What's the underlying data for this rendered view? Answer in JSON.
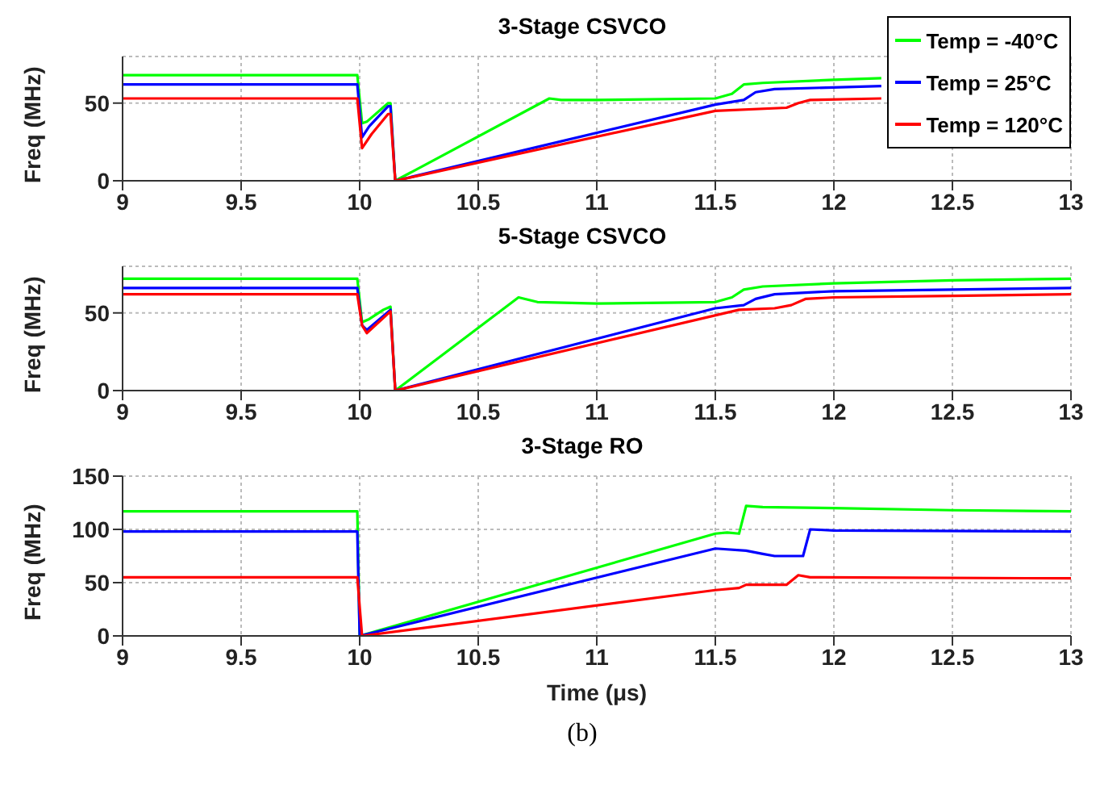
{
  "chart_data": [
    {
      "type": "line",
      "title": "3-Stage CSVCO",
      "ylabel": "Freq (MHz)",
      "xlim": [
        9,
        13
      ],
      "xticks": [
        9,
        9.5,
        10,
        10.5,
        11,
        11.5,
        12,
        12.5,
        13
      ],
      "ylim": [
        0,
        80
      ],
      "yticks": [
        0,
        50
      ],
      "grid": true,
      "legend": "top right",
      "line_style": "solid",
      "marker": "none",
      "series": [
        {
          "name": "Temp = -40°C",
          "color": "#00ff00",
          "x": [
            9,
            9.99,
            10.01,
            10.03,
            10.12,
            10.13,
            10.15,
            10.8,
            10.85,
            11.0,
            11.5,
            11.57,
            11.62,
            11.7,
            12,
            12.2
          ],
          "values": [
            68,
            68,
            37,
            38,
            50,
            50,
            0,
            53,
            52,
            52,
            53,
            56,
            62,
            63,
            65,
            66
          ]
        },
        {
          "name": "Temp = 25°C",
          "color": "#0000ff",
          "x": [
            9,
            9.99,
            10.01,
            10.04,
            10.12,
            10.13,
            10.15,
            11.5,
            11.62,
            11.67,
            11.75,
            12.2
          ],
          "values": [
            62,
            62,
            28,
            35,
            48,
            48,
            0,
            49,
            52,
            57,
            59,
            61
          ]
        },
        {
          "name": "Temp = 120°C",
          "color": "#ff0000",
          "x": [
            9,
            9.99,
            10.01,
            10.05,
            10.12,
            10.13,
            10.15,
            11.5,
            11.8,
            11.85,
            11.9,
            12.2
          ],
          "values": [
            53,
            53,
            21,
            30,
            43,
            43,
            0,
            45,
            47,
            50,
            52,
            53
          ]
        }
      ]
    },
    {
      "type": "line",
      "title": "5-Stage CSVCO",
      "ylabel": "Freq (MHz)",
      "xlim": [
        9,
        13
      ],
      "xticks": [
        9,
        9.5,
        10,
        10.5,
        11,
        11.5,
        12,
        12.5,
        13
      ],
      "ylim": [
        0,
        80
      ],
      "yticks": [
        0,
        50
      ],
      "grid": true,
      "line_style": "solid",
      "marker": "none",
      "series": [
        {
          "color": "#00ff00",
          "x": [
            9,
            9.99,
            10.01,
            10.04,
            10.1,
            10.13,
            10.15,
            10.67,
            10.75,
            11,
            11.5,
            11.57,
            11.62,
            11.7,
            12,
            12.5,
            13
          ],
          "values": [
            72,
            72,
            44,
            46,
            52,
            54,
            0,
            60,
            57,
            56,
            57,
            60,
            65,
            67,
            69,
            71,
            72
          ]
        },
        {
          "color": "#0000ff",
          "x": [
            9,
            9.99,
            10.01,
            10.03,
            10.13,
            10.15,
            11.5,
            11.62,
            11.67,
            11.75,
            12,
            12.5,
            13
          ],
          "values": [
            66,
            66,
            42,
            39,
            52,
            0,
            53,
            55,
            59,
            62,
            64,
            65,
            66
          ]
        },
        {
          "color": "#ff0000",
          "x": [
            9,
            9.99,
            10.01,
            10.03,
            10.13,
            10.15,
            11.6,
            11.75,
            11.82,
            11.88,
            12,
            12.5,
            13
          ],
          "values": [
            62,
            62,
            42,
            37,
            51,
            0,
            52,
            53,
            55,
            59,
            60,
            61,
            62
          ]
        }
      ]
    },
    {
      "type": "line",
      "title": "3-Stage RO",
      "ylabel": "Freq (MHz)",
      "xlabel": "Time (μs)",
      "xlim": [
        9,
        13
      ],
      "xticks": [
        9,
        9.5,
        10,
        10.5,
        11,
        11.5,
        12,
        12.5,
        13
      ],
      "ylim": [
        0,
        150
      ],
      "yticks": [
        0,
        50,
        100,
        150
      ],
      "grid": true,
      "line_style": "solid",
      "marker": "none",
      "annotations": [
        "(b)"
      ],
      "series": [
        {
          "color": "#00ff00",
          "x": [
            9,
            9.99,
            10.0,
            11.5,
            11.55,
            11.6,
            11.63,
            11.7,
            12,
            12.5,
            13
          ],
          "values": [
            117,
            117,
            0,
            96,
            97,
            96,
            122,
            121,
            120,
            118,
            117
          ]
        },
        {
          "color": "#0000ff",
          "x": [
            9,
            9.99,
            10.0,
            11.5,
            11.63,
            11.7,
            11.75,
            11.87,
            11.9,
            12,
            13
          ],
          "values": [
            98,
            98,
            0,
            82,
            80,
            77,
            75,
            75,
            100,
            99,
            98
          ]
        },
        {
          "color": "#ff0000",
          "x": [
            9,
            9.99,
            10.01,
            11.5,
            11.6,
            11.63,
            11.8,
            11.85,
            11.9,
            13
          ],
          "values": [
            55,
            55,
            0,
            43,
            45,
            48,
            48,
            57,
            55,
            54
          ]
        }
      ]
    }
  ]
}
